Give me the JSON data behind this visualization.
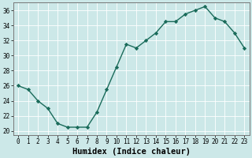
{
  "x": [
    0,
    1,
    2,
    3,
    4,
    5,
    6,
    7,
    8,
    9,
    10,
    11,
    12,
    13,
    14,
    15,
    16,
    17,
    18,
    19,
    20,
    21,
    22,
    23
  ],
  "y": [
    26,
    25.5,
    24,
    23,
    21,
    20.5,
    20.5,
    20.5,
    22.5,
    25.5,
    28.5,
    31.5,
    31,
    32,
    33,
    34.5,
    34.5,
    35.5,
    36,
    36.5,
    35,
    34.5,
    33,
    31
  ],
  "line_color": "#1a6b5a",
  "marker": "D",
  "marker_size": 2.2,
  "bg_color": "#cce8e8",
  "grid_color": "#ffffff",
  "xlabel": "Humidex (Indice chaleur)",
  "ylim": [
    19.5,
    37
  ],
  "xlim": [
    -0.5,
    23.5
  ],
  "yticks": [
    20,
    22,
    24,
    26,
    28,
    30,
    32,
    34,
    36
  ],
  "xticks": [
    0,
    1,
    2,
    3,
    4,
    5,
    6,
    7,
    8,
    9,
    10,
    11,
    12,
    13,
    14,
    15,
    16,
    17,
    18,
    19,
    20,
    21,
    22,
    23
  ],
  "tick_fontsize": 5.5,
  "xlabel_fontsize": 7.5,
  "line_width": 1.0
}
